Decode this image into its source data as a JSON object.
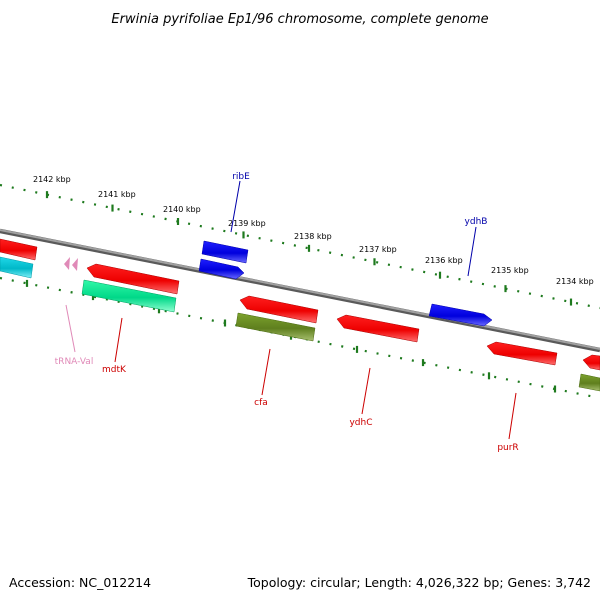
{
  "title": "Erwinia pyrifoliae Ep1/96 chromosome, complete genome",
  "footer": {
    "accession": "Accession: NC_012214",
    "summary": "Topology: circular; Length: 4,026,322 bp; Genes: 3,742"
  },
  "scale_ticks": [
    "2142 kbp",
    "2141 kbp",
    "2140 kbp",
    "2139 kbp",
    "2138 kbp",
    "2137 kbp",
    "2136 kbp",
    "2135 kbp",
    "2134 kbp"
  ],
  "gene_labels": {
    "ribE": "ribE",
    "ydhB": "ydhB",
    "tRNA_Val": "tRNA-Val",
    "mdtK": "mdtK",
    "cfa": "cfa",
    "ydhC": "ydhC",
    "purR": "purR"
  },
  "colors": {
    "backbone": "#8a8a8a",
    "tick": "#1e7a1e",
    "cds_red": "#ff0000",
    "cds_blue": "#1010ee",
    "cds_green": "#6b8e23",
    "cds_cyan": "#00c8d8",
    "cds_teal": "#00e890",
    "trna_pink": "#e08ab8",
    "label_red": "#cc0000",
    "label_blue": "#0000aa",
    "label_pink": "#e08ab8"
  }
}
